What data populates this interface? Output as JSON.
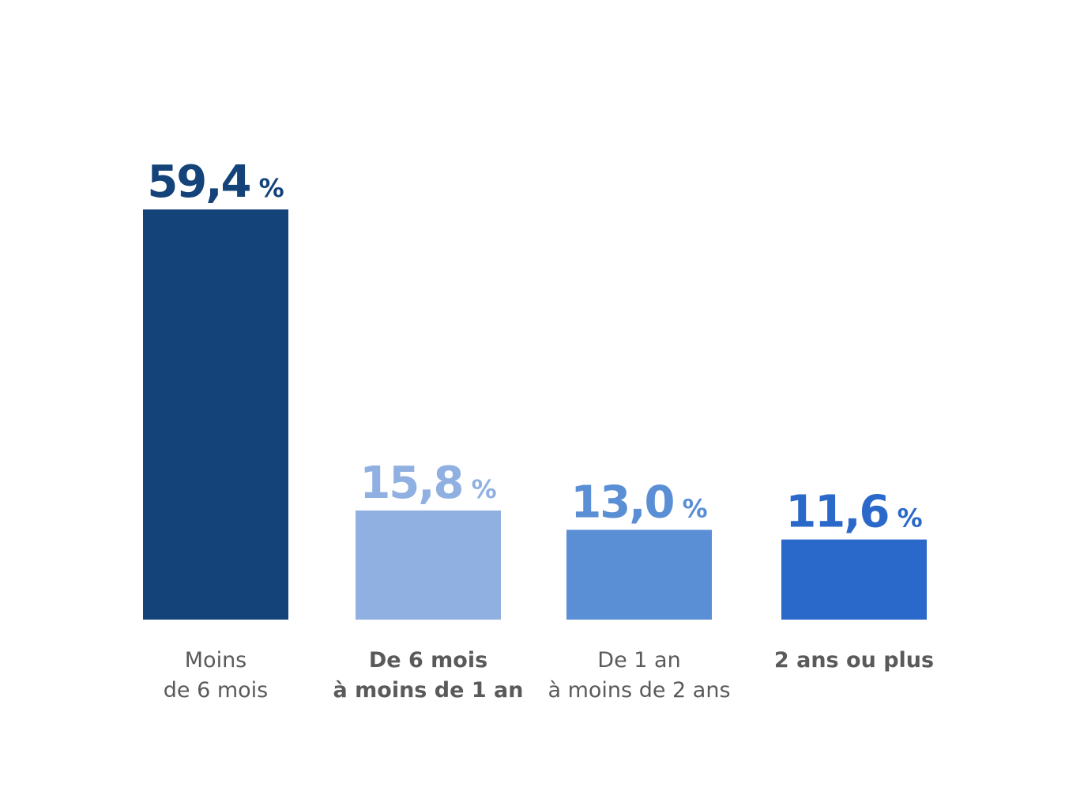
{
  "chart_data": {
    "type": "bar",
    "categories": [
      [
        "Moins",
        "de 6 mois"
      ],
      [
        "De 6 mois",
        "à moins de 1 an"
      ],
      [
        "De 1 an",
        "à moins de 2 ans"
      ],
      [
        "2 ans ou plus"
      ]
    ],
    "category_bold": [
      false,
      true,
      false,
      true
    ],
    "values": [
      59.4,
      15.8,
      13.0,
      11.6
    ],
    "value_labels": [
      "59,4",
      "15,8",
      "13,0",
      "11,6"
    ],
    "unit": "%",
    "colors": [
      "#134379",
      "#8fb0e0",
      "#5a8ed5",
      "#2a68c9"
    ],
    "ylim": [
      0,
      59.4
    ],
    "title": "",
    "xlabel": "",
    "ylabel": "",
    "grid": false,
    "legend": "none"
  }
}
